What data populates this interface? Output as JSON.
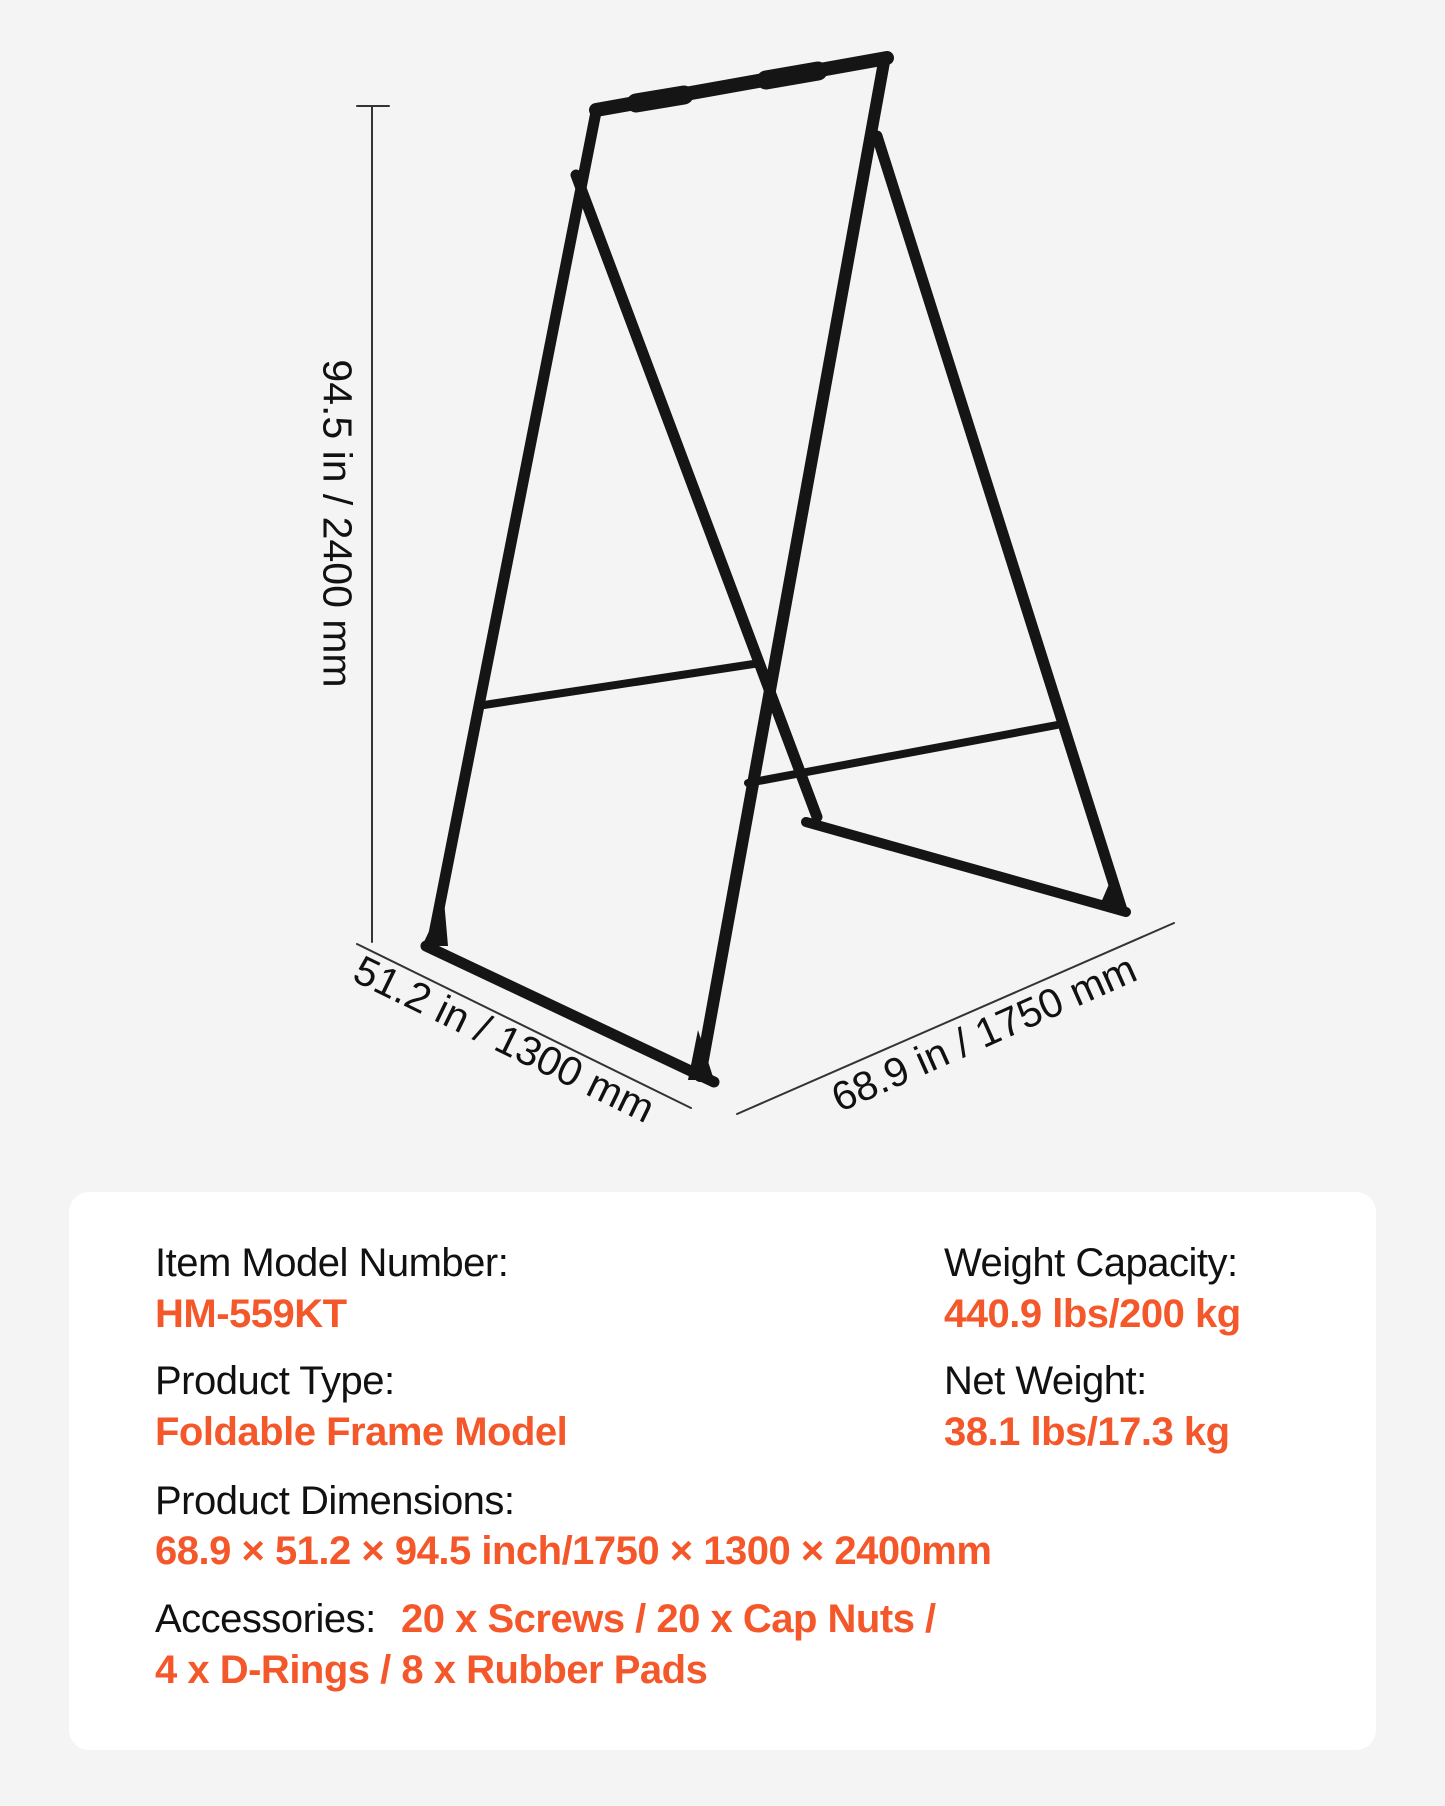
{
  "dimensions": {
    "height": "94.5 in / 2400 mm",
    "width": "51.2 in / 1300 mm",
    "length": "68.9 in / 1750 mm"
  },
  "specs": {
    "model_label": "Item Model Number:",
    "model_value": "HM-559KT",
    "type_label": "Product Type:",
    "type_value": "Foldable Frame Model",
    "capacity_label": "Weight Capacity:",
    "capacity_value": "440.9 lbs/200 kg",
    "net_label": "Net Weight:",
    "net_value": "38.1 lbs/17.3 kg",
    "dims_label": "Product Dimensions:",
    "dims_value": "68.9 × 51.2 × 94.5 inch/1750 × 1300 × 2400mm",
    "acc_label": "Accessories:",
    "acc_value_1": "20 x Screws / 20 x Cap Nuts /",
    "acc_value_2": "4 x D-Rings / 8 x Rubber Pads"
  },
  "colors": {
    "accent": "#f4572a",
    "frame": "#151515",
    "background": "#f4f4f4"
  }
}
